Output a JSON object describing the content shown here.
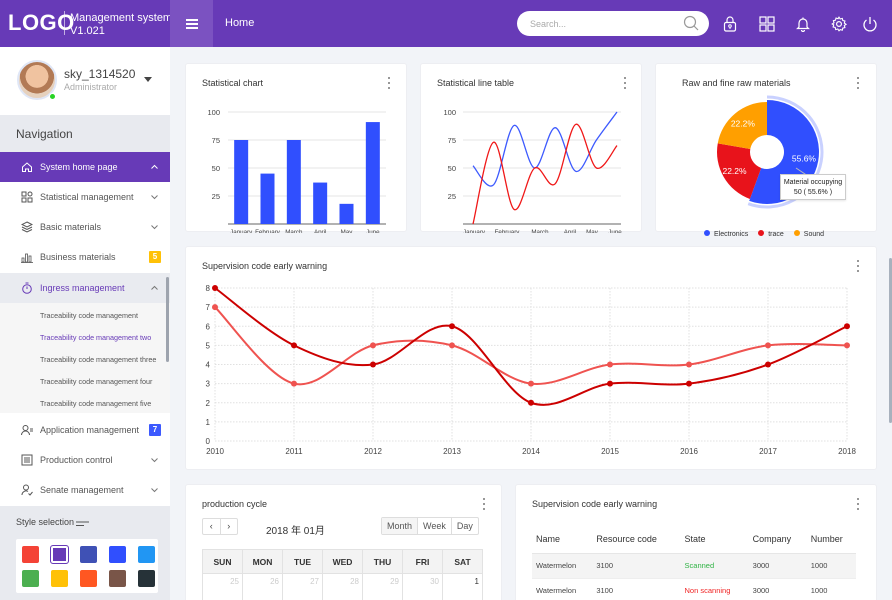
{
  "header": {
    "logo": "LOGO",
    "app_title": "Management system",
    "version": "V1.021",
    "home": "Home",
    "search_placeholder": "Search...",
    "icons": [
      "lock-icon",
      "grid-icon",
      "bell-icon",
      "gear-icon",
      "power-icon"
    ]
  },
  "user": {
    "name": "sky_1314520",
    "role": "Administrator",
    "status": "online"
  },
  "sidebar": {
    "title": "Navigation",
    "items": [
      {
        "label": "System home page",
        "icon": "home-icon",
        "state": "active",
        "chevron": "up"
      },
      {
        "label": "Statistical management",
        "icon": "apps-icon",
        "chevron": "down"
      },
      {
        "label": "Basic materials",
        "icon": "layers-icon",
        "chevron": "down"
      },
      {
        "label": "Business materials",
        "icon": "bar-chart-icon",
        "badge": "5",
        "badge_color": "#ffc107"
      },
      {
        "label": "Ingress management",
        "icon": "stopwatch-icon",
        "state": "open",
        "chevron": "up"
      },
      {
        "label": "Application management",
        "icon": "user-card-icon",
        "badge": "7",
        "badge_color": "#3d5afe"
      },
      {
        "label": "Production control",
        "icon": "list-icon",
        "chevron": "down"
      },
      {
        "label": "Senate management",
        "icon": "user-check-icon",
        "chevron": "down"
      }
    ],
    "submenu": [
      {
        "label": "Traceability code management"
      },
      {
        "label": "Traceability code management two",
        "current": true
      },
      {
        "label": "Traceability code management three"
      },
      {
        "label": "Traceability code management four"
      },
      {
        "label": "Traceability code management five"
      }
    ],
    "style_selection": {
      "label": "Style selection",
      "selected_index": 1,
      "colors": [
        "#f44336",
        "#673ab7",
        "#3f51b5",
        "#304ffe",
        "#2196f3",
        "#4caf50",
        "#ffc107",
        "#ff5722",
        "#795548",
        "#263238"
      ]
    }
  },
  "cards": {
    "bar": {
      "title": "Statistical chart"
    },
    "line": {
      "title": "Statistical line table"
    },
    "pie": {
      "title": "Raw and fine raw materials",
      "tooltip_title": "Material occupying",
      "tooltip_value": "50 ( 55.6% )"
    },
    "warning": {
      "title": "Supervision code early warning"
    },
    "calendar": {
      "title": "production cycle",
      "prev": "‹",
      "next": "›",
      "month_label": "2018 年 01月",
      "views": [
        "Month",
        "Week",
        "Day"
      ],
      "selected_view": "Month",
      "weekdays": [
        "SUN",
        "MON",
        "TUE",
        "WED",
        "THU",
        "FRI",
        "SAT"
      ],
      "first_row": [
        "25",
        "26",
        "27",
        "28",
        "29",
        "30",
        "1"
      ]
    },
    "table": {
      "title": "Supervision code early warning",
      "columns": [
        "Name",
        "Resource code",
        "State",
        "Company",
        "Number"
      ],
      "rows": [
        {
          "name": "Watermelon",
          "code": "3100",
          "state": "Scanned",
          "state_color": "#2fb344",
          "company": "3000",
          "number": "1000"
        },
        {
          "name": "Watermelon",
          "code": "3100",
          "state": "Non scanning",
          "state_color": "#f02424",
          "company": "3000",
          "number": "1000"
        }
      ]
    }
  },
  "chart_data": [
    {
      "type": "bar",
      "title": "Statistical chart",
      "categories": [
        "January",
        "February",
        "March",
        "April",
        "May",
        "June"
      ],
      "values": [
        75,
        45,
        75,
        37,
        18,
        91
      ],
      "yticks": [
        25,
        50,
        75,
        100
      ],
      "ylim": [
        0,
        100
      ],
      "color": "#304ffe",
      "grid": true
    },
    {
      "type": "line",
      "title": "Statistical line table",
      "categories": [
        "January",
        "February",
        "March",
        "April",
        "May",
        "June"
      ],
      "x": [
        0,
        1,
        2,
        3,
        4,
        5,
        6,
        7
      ],
      "series": [
        {
          "name": "blue",
          "color": "#3d5afe",
          "values": [
            52,
            35,
            88,
            50,
            86,
            47,
            75,
            100
          ]
        },
        {
          "name": "red",
          "color": "#f01818",
          "values": [
            0,
            73,
            13,
            50,
            36,
            89,
            50,
            70
          ]
        }
      ],
      "yticks": [
        25,
        50,
        75,
        100
      ],
      "ylim": [
        0,
        100
      ],
      "grid": true
    },
    {
      "type": "pie",
      "title": "Raw and fine raw materials",
      "slices": [
        {
          "label": "Electronics",
          "value": 50,
          "percent": "55.6%",
          "color": "#304ffe"
        },
        {
          "label": "trace",
          "value": 20,
          "percent": "22.2%",
          "color": "#e8131b"
        },
        {
          "label": "Sound",
          "value": 20,
          "percent": "22.2%",
          "color": "#ff9f00"
        }
      ],
      "donut": true,
      "legend": "bottom"
    },
    {
      "type": "line",
      "title": "Supervision code early warning",
      "categories": [
        "2010",
        "2011",
        "2012",
        "2013",
        "2014",
        "2015",
        "2016",
        "2017",
        "2018"
      ],
      "series": [
        {
          "name": "series-dark",
          "color": "#cc0000",
          "values": [
            8,
            5,
            4,
            6,
            2,
            3,
            3,
            4,
            6
          ]
        },
        {
          "name": "series-light",
          "color": "#ef5350",
          "values": [
            7,
            3,
            5,
            5,
            3,
            4,
            4,
            5,
            5
          ]
        }
      ],
      "yticks": [
        0,
        1,
        2,
        3,
        4,
        5,
        6,
        7,
        8
      ],
      "ylim": [
        0,
        8
      ],
      "grid": true
    }
  ]
}
